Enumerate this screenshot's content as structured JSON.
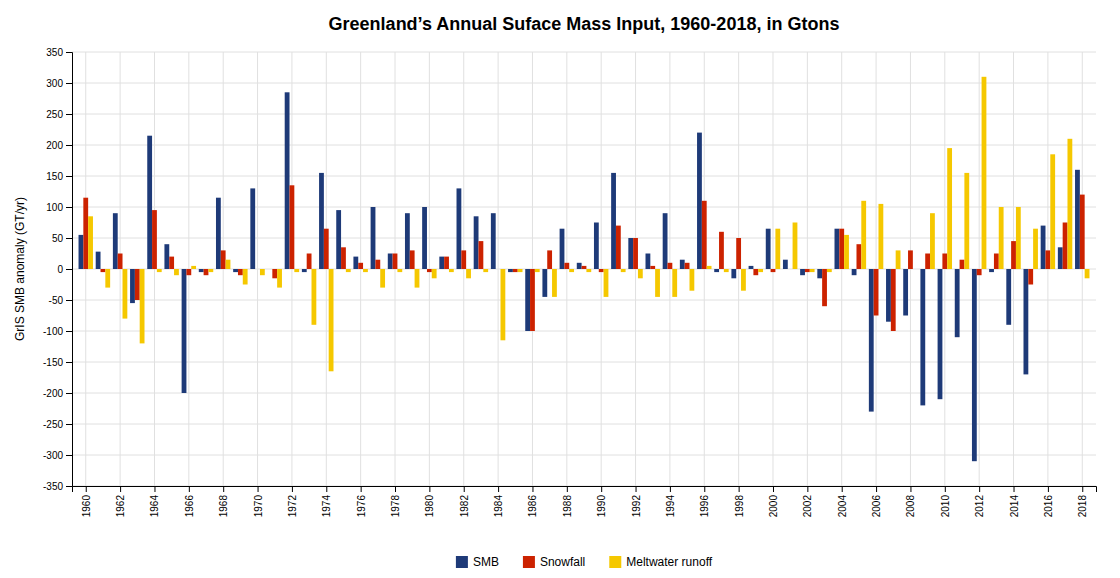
{
  "chart_data": {
    "type": "bar",
    "title": "Greenland’s Annual Suface Mass Input, 1960-2018, in Gtons",
    "ylabel": "GrIS SMB anomaly (GT/yr)",
    "x": [
      1960,
      1961,
      1962,
      1963,
      1964,
      1965,
      1966,
      1967,
      1968,
      1969,
      1970,
      1971,
      1972,
      1973,
      1974,
      1975,
      1976,
      1977,
      1978,
      1979,
      1980,
      1981,
      1982,
      1983,
      1984,
      1985,
      1986,
      1987,
      1988,
      1989,
      1990,
      1991,
      1992,
      1993,
      1994,
      1995,
      1996,
      1997,
      1998,
      1999,
      2000,
      2001,
      2002,
      2003,
      2004,
      2005,
      2006,
      2007,
      2008,
      2009,
      2010,
      2011,
      2012,
      2013,
      2014,
      2015,
      2016,
      2017,
      2018
    ],
    "series": [
      {
        "name": "SMB",
        "color": "#1e3a78",
        "values": [
          55,
          28,
          90,
          -55,
          215,
          40,
          -200,
          -5,
          115,
          -5,
          130,
          0,
          285,
          -5,
          155,
          95,
          20,
          100,
          25,
          90,
          100,
          20,
          130,
          85,
          90,
          -5,
          -100,
          -45,
          65,
          10,
          75,
          155,
          50,
          25,
          90,
          15,
          220,
          -5,
          -15,
          5,
          65,
          15,
          -10,
          -15,
          65,
          -10,
          -230,
          -85,
          -75,
          -220,
          -210,
          -110,
          -310,
          -5,
          -90,
          -170,
          70,
          35,
          160
        ]
      },
      {
        "name": "Snowfall",
        "color": "#cc2200",
        "values": [
          115,
          -5,
          25,
          -50,
          95,
          20,
          -10,
          -10,
          30,
          -10,
          0,
          -15,
          135,
          25,
          65,
          35,
          10,
          15,
          25,
          30,
          -5,
          20,
          30,
          45,
          0,
          -5,
          -100,
          30,
          10,
          5,
          -5,
          70,
          50,
          5,
          10,
          10,
          110,
          60,
          50,
          -10,
          -5,
          0,
          -5,
          -60,
          65,
          40,
          -75,
          -100,
          30,
          25,
          25,
          15,
          -10,
          25,
          45,
          -25,
          30,
          75,
          120
        ]
      },
      {
        "name": "Meltwater runoff",
        "color": "#f5c800",
        "values": [
          85,
          -30,
          -80,
          -120,
          -5,
          -10,
          5,
          -5,
          15,
          -25,
          -10,
          -30,
          -5,
          -90,
          -165,
          -5,
          -5,
          -30,
          -5,
          -30,
          -15,
          -5,
          -15,
          -5,
          -115,
          -5,
          -5,
          -45,
          -5,
          -5,
          -45,
          -5,
          -15,
          -45,
          -45,
          -35,
          5,
          -5,
          -35,
          -5,
          65,
          75,
          -5,
          -5,
          55,
          110,
          105,
          30,
          0,
          90,
          195,
          155,
          310,
          100,
          100,
          65,
          185,
          210,
          -15
        ]
      }
    ],
    "xlim": [
      1959.2,
      2018.8
    ],
    "xticks": [
      1960,
      1962,
      1964,
      1966,
      1968,
      1970,
      1972,
      1974,
      1976,
      1978,
      1980,
      1982,
      1984,
      1986,
      1988,
      1990,
      1992,
      1994,
      1996,
      1998,
      2000,
      2002,
      2004,
      2006,
      2008,
      2010,
      2012,
      2014,
      2016,
      2018
    ],
    "ylim": [
      -350,
      350
    ],
    "yticks": [
      -350,
      -300,
      -250,
      -200,
      -150,
      -100,
      -50,
      0,
      50,
      100,
      150,
      200,
      250,
      300,
      350
    ],
    "grid": true,
    "legend": "bottom"
  }
}
